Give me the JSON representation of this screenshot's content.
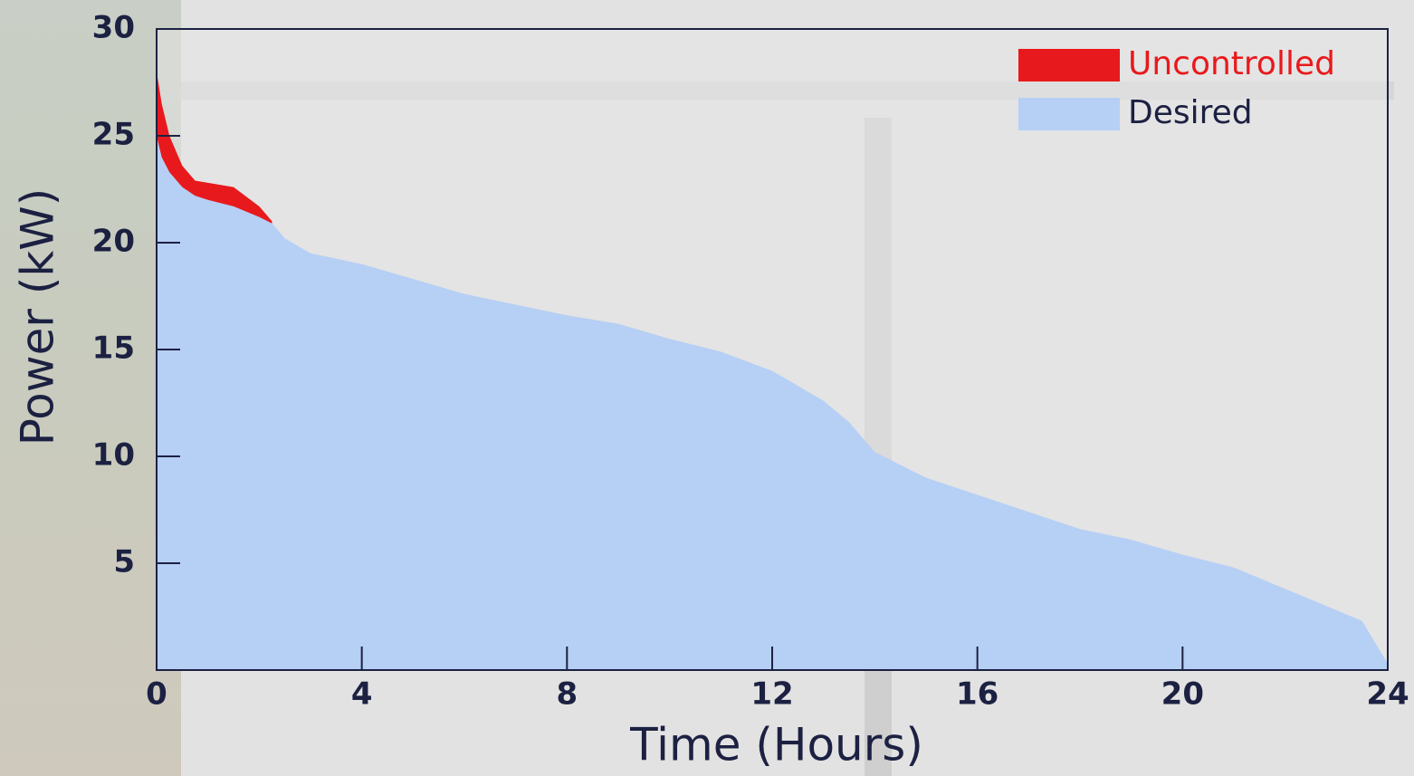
{
  "chart_data": {
    "type": "area",
    "x_label": "Time (Hours)",
    "y_label": "Power (kW)",
    "x": [
      0,
      0.1,
      0.25,
      0.5,
      0.75,
      1,
      1.5,
      2,
      2.25,
      2.5,
      3,
      4,
      5,
      6,
      7,
      8,
      9,
      10,
      11,
      12,
      13,
      13.5,
      14,
      15,
      16,
      17,
      18,
      19,
      20,
      21,
      22,
      23,
      23.5,
      24
    ],
    "series": [
      {
        "name": "Uncontrolled",
        "color": "#e8191c",
        "values": [
          28.0,
          26.5,
          25.0,
          23.6,
          22.9,
          22.8,
          22.6,
          21.7,
          21.0,
          null,
          null,
          null,
          null,
          null,
          null,
          null,
          null,
          null,
          null,
          null,
          null,
          null,
          null,
          null,
          null,
          null,
          null,
          null,
          null,
          null,
          null,
          null,
          null,
          null
        ]
      },
      {
        "name": "Desired",
        "color": "#b6cff5",
        "values": [
          25.0,
          24.0,
          23.3,
          22.6,
          22.2,
          22.0,
          21.7,
          21.2,
          20.9,
          20.2,
          19.5,
          19.0,
          18.3,
          17.6,
          17.1,
          16.6,
          16.2,
          15.5,
          14.9,
          14.0,
          12.6,
          11.6,
          10.2,
          9.0,
          8.2,
          7.4,
          6.6,
          6.1,
          5.4,
          4.8,
          3.8,
          2.8,
          2.3,
          0.3
        ]
      }
    ],
    "xlim": [
      0,
      24
    ],
    "xticks": [
      0,
      4,
      8,
      12,
      16,
      20,
      24
    ],
    "ylim": [
      0,
      30
    ],
    "yticks": [
      5,
      10,
      15,
      20,
      25,
      30
    ],
    "legend": "upper right"
  }
}
